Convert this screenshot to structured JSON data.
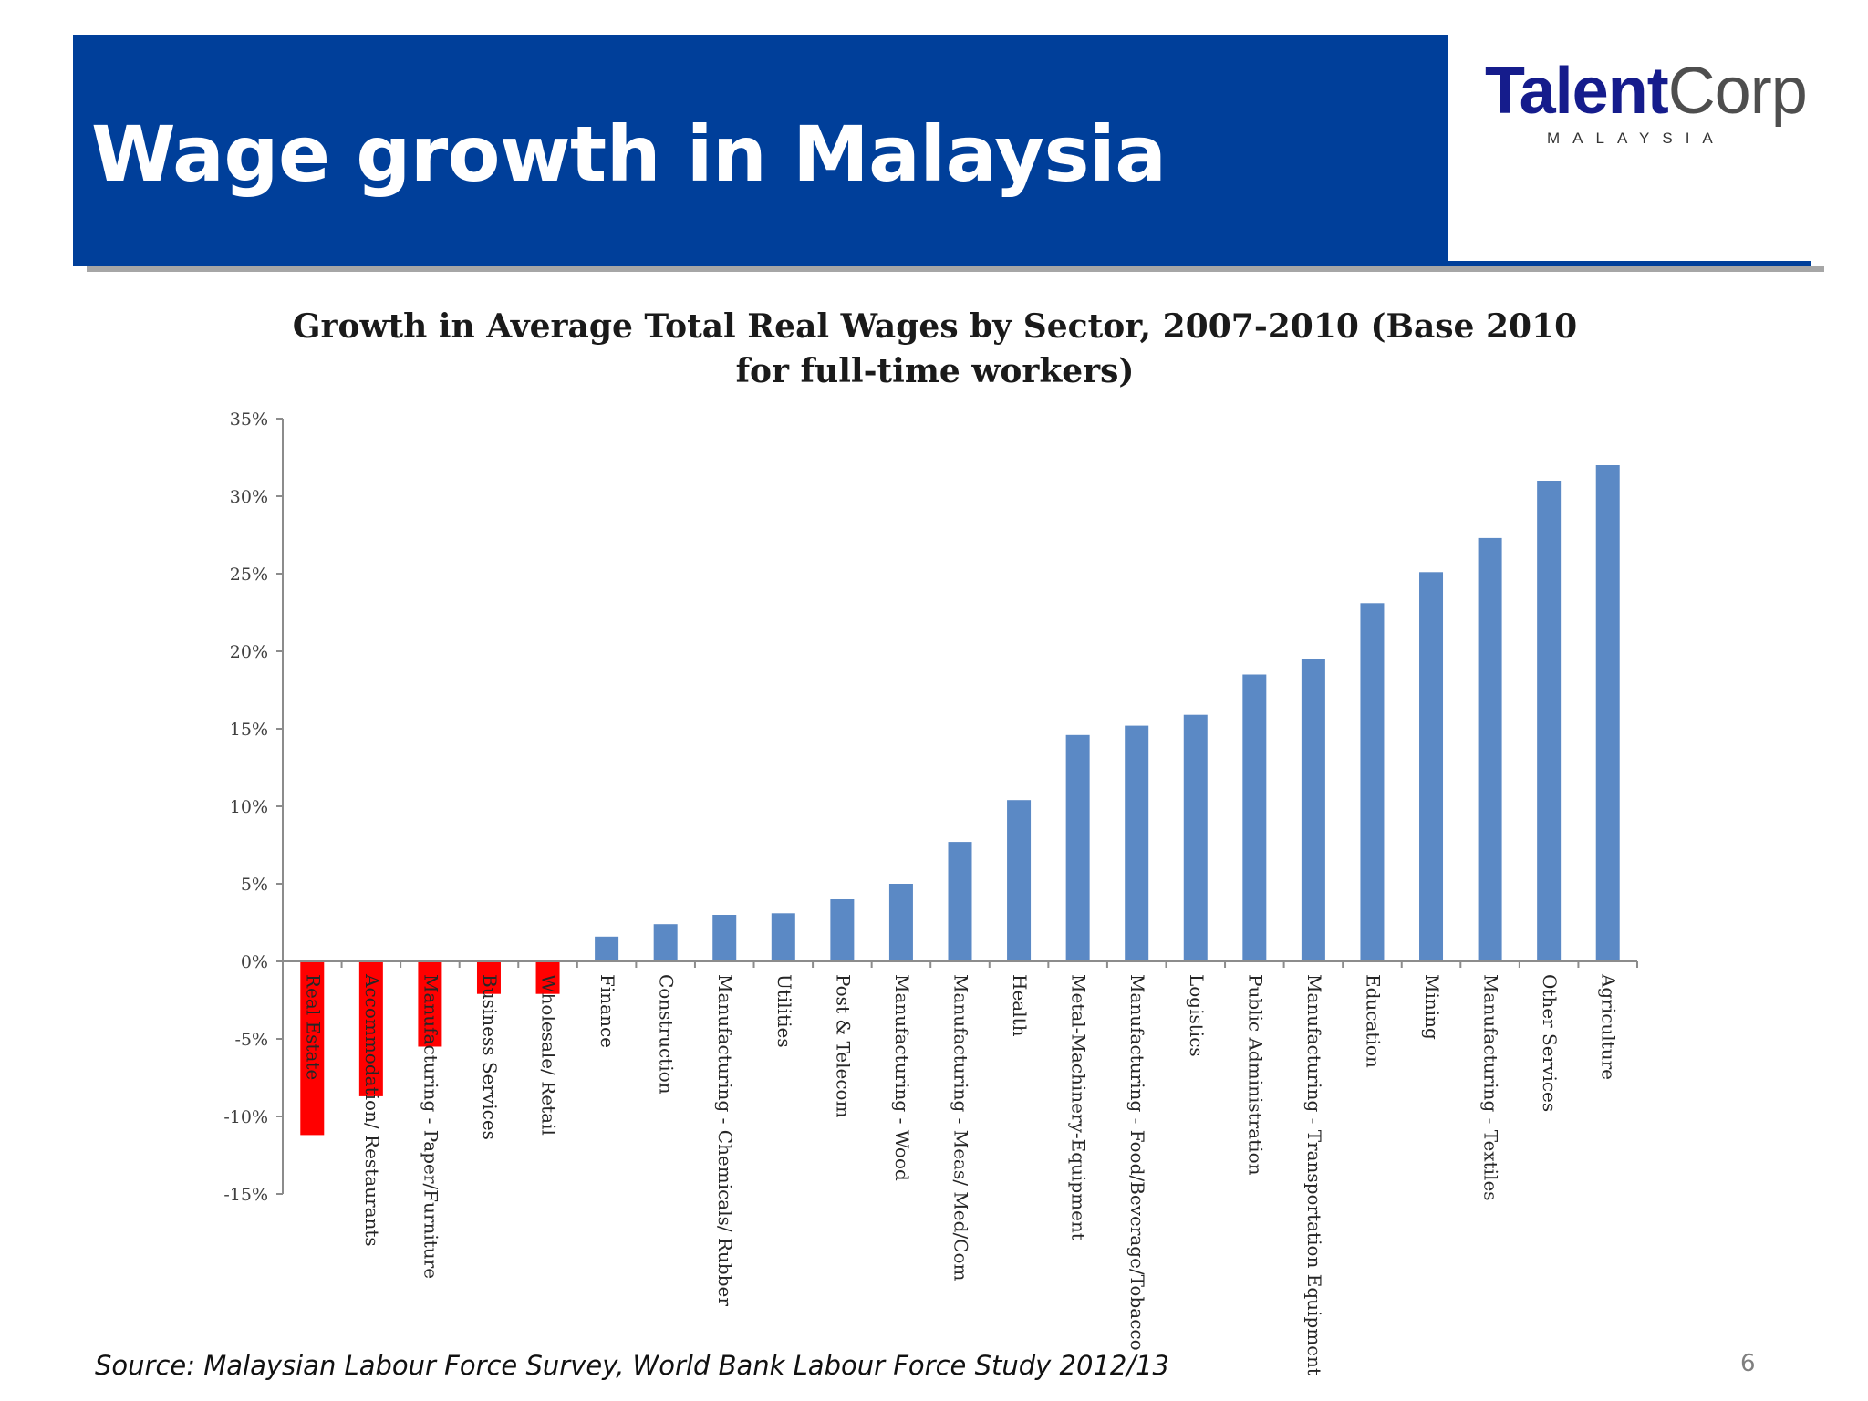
{
  "slide": {
    "title": "Wage growth in Malaysia",
    "page_number": "6",
    "source": "Source: Malaysian Labour Force Survey, World Bank Labour Force Study 2012/13",
    "logo": {
      "brand_primary": "Talent",
      "brand_secondary": "Corp",
      "country": "MALAYSIA"
    },
    "colors": {
      "header": "#003f9a",
      "positive_bar": "#5b89c5",
      "negative_bar": "#ff0000"
    }
  },
  "chart_data": {
    "type": "bar",
    "title_line1": "Growth in Average Total Real Wages by Sector, 2007-2010 (Base 2010",
    "title_line2": "for full-time workers)",
    "categories": [
      "Real Estate",
      "Accommodation/ Restaurants",
      "Manufacturing - Paper/Furniture",
      "Business Services",
      "Wholesale/ Retail",
      "Finance",
      "Construction",
      "Manufacturing - Chemicals/ Rubber",
      "Utilities",
      "Post & Telecom",
      "Manufacturing - Wood",
      "Manufacturing - Meas/ Med/Com",
      "Health",
      "Metal-Machinery-Equipment",
      "Manufacturing - Food/Beverage/Tobacco",
      "Logistics",
      "Public Administration",
      "Manufacturing - Transportation Equipment",
      "Education",
      "Mining",
      "Manufacturing - Textiles",
      "Other Services",
      "Agriculture"
    ],
    "values": [
      -11.2,
      -8.7,
      -5.5,
      -2.1,
      -2.1,
      1.6,
      2.4,
      3.0,
      3.1,
      4.0,
      5.0,
      7.7,
      10.4,
      14.6,
      15.2,
      15.9,
      18.5,
      19.5,
      23.1,
      25.1,
      27.3,
      31.0,
      32.0
    ],
    "ylim": [
      -15,
      35
    ],
    "yticks": [
      "-15%",
      "-10%",
      "-5%",
      "0%",
      "5%",
      "10%",
      "15%",
      "20%",
      "25%",
      "30%",
      "35%"
    ],
    "ytick_values": [
      -15,
      -10,
      -5,
      0,
      5,
      10,
      15,
      20,
      25,
      30,
      35
    ],
    "grid": false,
    "legend": "none"
  }
}
